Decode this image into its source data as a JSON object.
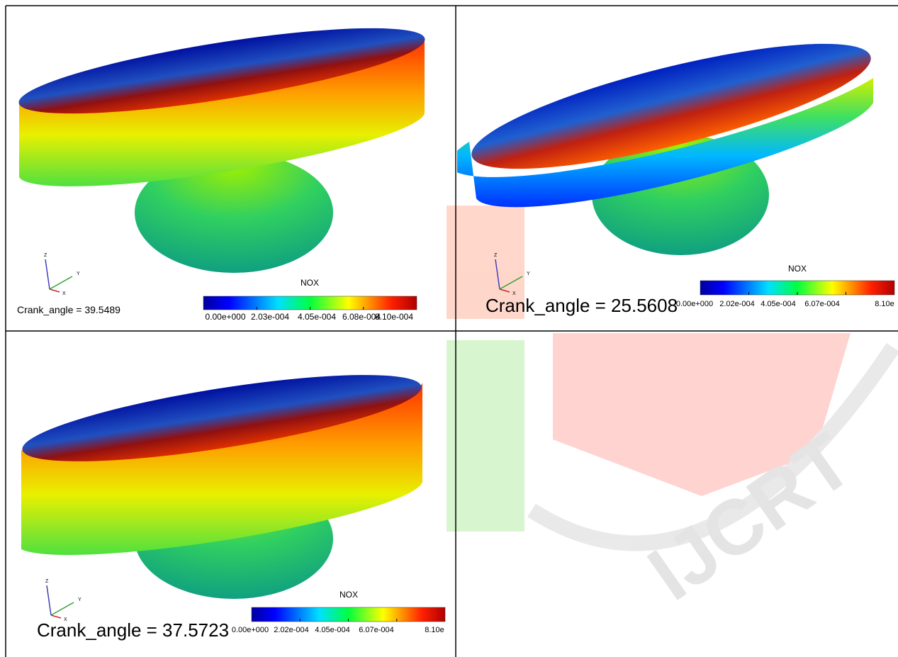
{
  "panels": [
    {
      "crank_angle": "Crank_angle = 39.5489",
      "legend_title": "NOX",
      "legend_ticks": [
        "0.00e+000",
        "2.03e-004",
        "4.05e-004",
        "6.08e-004",
        "8.10e-004"
      ],
      "axes": [
        "Z",
        "Y",
        "X"
      ]
    },
    {
      "crank_angle": "Crank_angle = 25.5608",
      "legend_title": "NOX",
      "legend_ticks": [
        "0.00e+000",
        "2.02e-004",
        "4.05e-004",
        "6.07e-004",
        "8.10e"
      ],
      "axes": [
        "Z",
        "Y",
        "X"
      ]
    },
    {
      "crank_angle": "Crank_angle = 37.5723",
      "legend_title": "NOX",
      "legend_ticks": [
        "0.00e+000",
        "2.02e-004",
        "4.05e-004",
        "6.07e-004",
        "8.10e"
      ],
      "axes": [
        "Z",
        "Y",
        "X"
      ]
    }
  ],
  "watermark": "IJCRT"
}
